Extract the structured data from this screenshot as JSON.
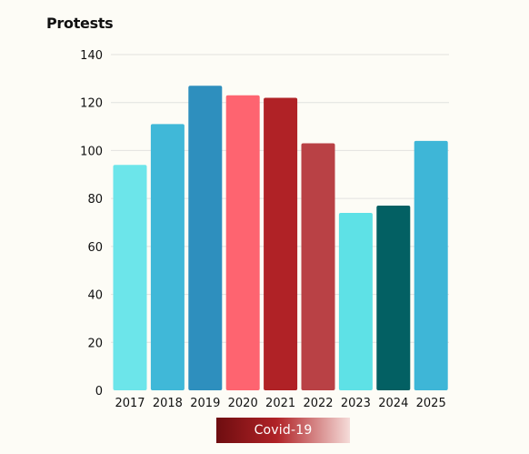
{
  "chart_data": {
    "type": "bar",
    "ylabel": "Protests",
    "categories": [
      "2017",
      "2018",
      "2019",
      "2020",
      "2021",
      "2022",
      "2023",
      "2024",
      "2025"
    ],
    "values": [
      94,
      111,
      127,
      123,
      122,
      103,
      74,
      77,
      104
    ],
    "bar_colors": [
      "#6ce5ea",
      "#40b8d8",
      "#2e8fbe",
      "#fe6470",
      "#b02226",
      "#b94145",
      "#5ee1e6",
      "#036063",
      "#3eb6d7"
    ],
    "ylim": [
      0,
      140
    ],
    "yticks": [
      0,
      20,
      40,
      60,
      80,
      100,
      120,
      140
    ],
    "grid": true,
    "legend": {
      "label": "Covid-19",
      "gradient": [
        "#6e0d10",
        "#b02226",
        "#f5dcd9"
      ],
      "placement": "bottom-center"
    }
  }
}
